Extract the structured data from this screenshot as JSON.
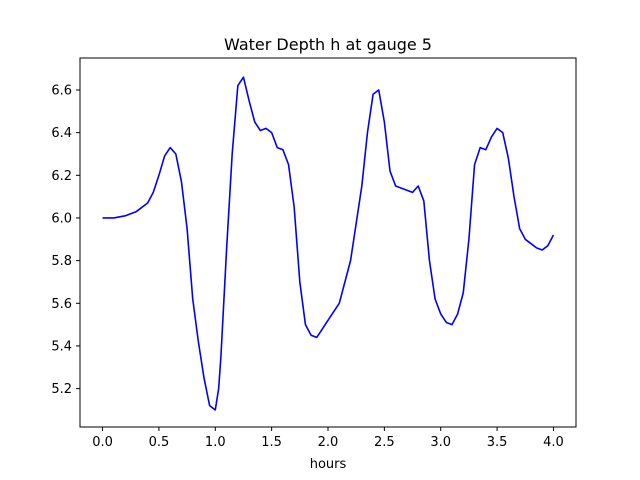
{
  "chart_data": {
    "type": "line",
    "title": "Water Depth h at gauge 5",
    "xlabel": "hours",
    "ylabel": "",
    "xlim": [
      -0.2,
      4.2
    ],
    "ylim": [
      5.02,
      6.75
    ],
    "xticks": [
      0.0,
      0.5,
      1.0,
      1.5,
      2.0,
      2.5,
      3.0,
      3.5,
      4.0
    ],
    "xtick_labels": [
      "0.0",
      "0.5",
      "1.0",
      "1.5",
      "2.0",
      "2.5",
      "3.0",
      "3.5",
      "4.0"
    ],
    "yticks": [
      5.2,
      5.4,
      5.6,
      5.8,
      6.0,
      6.2,
      6.4,
      6.6
    ],
    "ytick_labels": [
      "5.2",
      "5.4",
      "5.6",
      "5.8",
      "6.0",
      "6.2",
      "6.4",
      "6.6"
    ],
    "grid": false,
    "series": [
      {
        "color": "#0000ff",
        "x": [
          0.0,
          0.1,
          0.2,
          0.3,
          0.4,
          0.45,
          0.5,
          0.55,
          0.6,
          0.65,
          0.7,
          0.75,
          0.8,
          0.85,
          0.9,
          0.95,
          1.0,
          1.03,
          1.05,
          1.1,
          1.15,
          1.2,
          1.25,
          1.3,
          1.35,
          1.4,
          1.45,
          1.5,
          1.55,
          1.6,
          1.65,
          1.7,
          1.75,
          1.8,
          1.85,
          1.9,
          1.95,
          2.0,
          2.1,
          2.2,
          2.3,
          2.35,
          2.4,
          2.45,
          2.5,
          2.55,
          2.6,
          2.65,
          2.7,
          2.75,
          2.8,
          2.85,
          2.9,
          2.95,
          3.0,
          3.05,
          3.1,
          3.15,
          3.2,
          3.25,
          3.3,
          3.35,
          3.4,
          3.45,
          3.5,
          3.55,
          3.6,
          3.65,
          3.7,
          3.75,
          3.8,
          3.85,
          3.9,
          3.95,
          4.0
        ],
        "y": [
          6.0,
          6.0,
          6.01,
          6.03,
          6.07,
          6.12,
          6.2,
          6.29,
          6.33,
          6.3,
          6.17,
          5.95,
          5.62,
          5.42,
          5.25,
          5.12,
          5.1,
          5.2,
          5.35,
          5.85,
          6.3,
          6.62,
          6.66,
          6.55,
          6.45,
          6.41,
          6.42,
          6.4,
          6.33,
          6.32,
          6.25,
          6.05,
          5.7,
          5.5,
          5.45,
          5.44,
          5.48,
          5.52,
          5.6,
          5.8,
          6.15,
          6.4,
          6.58,
          6.6,
          6.45,
          6.22,
          6.15,
          6.14,
          6.13,
          6.12,
          6.15,
          6.08,
          5.8,
          5.62,
          5.55,
          5.51,
          5.5,
          5.55,
          5.65,
          5.9,
          6.25,
          6.33,
          6.32,
          6.38,
          6.42,
          6.4,
          6.28,
          6.1,
          5.95,
          5.9,
          5.88,
          5.86,
          5.85,
          5.87,
          5.92
        ]
      }
    ]
  }
}
